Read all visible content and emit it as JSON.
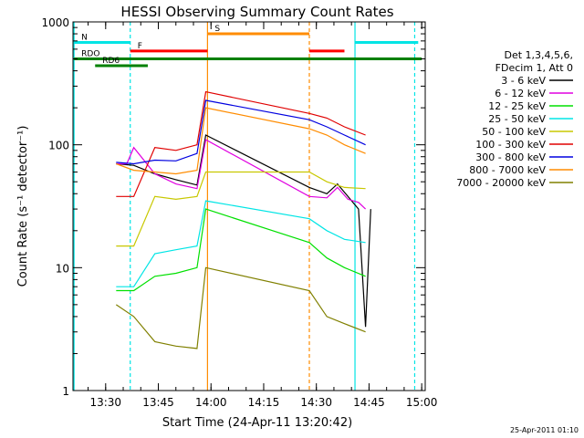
{
  "chart_data": {
    "type": "line",
    "title": "HESSI Observing Summary Count Rates",
    "xlabel": "Start Time (24-Apr-11 13:20:42)",
    "ylabel": "Count Rate (s⁻¹ detector⁻¹)",
    "yscale": "log",
    "ylim": [
      1,
      1000
    ],
    "xlim": [
      "13:20:42",
      "15:01:00"
    ],
    "x_ticks": [
      "13:30",
      "13:45",
      "14:00",
      "14:15",
      "14:30",
      "14:45",
      "15:00"
    ],
    "y_ticks": [
      "1",
      "10",
      "100",
      "1000"
    ],
    "legend_title": [
      "Det 1,3,4,5,6,",
      "FDecim 1, Att 0"
    ],
    "legend_position": "right",
    "footer": "25-Apr-2011 01:10",
    "markers": {
      "vlines_solid_cyan": [
        "13:21",
        "14:41"
      ],
      "vlines_dashed_cyan": [
        "13:37",
        "14:58"
      ],
      "vlines_solid_orange": [
        "13:59"
      ],
      "vlines_dashed_orange": [
        "14:28"
      ]
    },
    "flag_bars": [
      {
        "label": "N",
        "color": "#00e5e5",
        "y": 680,
        "segments": [
          [
            "13:21",
            "13:37"
          ],
          [
            "14:41",
            "14:59"
          ]
        ]
      },
      {
        "label": "S",
        "color": "#ff8c00",
        "y": 800,
        "segments": [
          [
            "13:59",
            "14:28"
          ]
        ]
      },
      {
        "label": "F",
        "color": "#ff0000",
        "y": 580,
        "segments": [
          [
            "13:37",
            "13:59"
          ],
          [
            "14:28",
            "14:38"
          ]
        ]
      },
      {
        "label": "RDO",
        "color": "#008000",
        "y": 500,
        "segments": [
          [
            "13:21",
            "15:00"
          ]
        ]
      },
      {
        "label": "RD6",
        "color": "#008000",
        "y": 440,
        "segments": [
          [
            "13:27",
            "13:42"
          ]
        ]
      }
    ],
    "series": [
      {
        "name": "3 - 6 keV",
        "color": "#000000",
        "x": [
          "13:33",
          "13:38",
          "13:44",
          "13:50",
          "13:56",
          "13:58.5",
          "14:28",
          "14:33",
          "14:36",
          "14:39",
          "14:42",
          "14:44",
          "14:45.5"
        ],
        "y": [
          70,
          68,
          58,
          52,
          47,
          120,
          45,
          40,
          48,
          38,
          30,
          3.3,
          30
        ]
      },
      {
        "name": "6 - 12 keV",
        "color": "#e000e0",
        "x": [
          "13:33",
          "13:36",
          "13:38",
          "13:44",
          "13:50",
          "13:56",
          "13:58.5",
          "14:28",
          "14:33",
          "14:36",
          "14:39",
          "14:42",
          "14:44"
        ],
        "y": [
          70,
          70,
          95,
          58,
          48,
          44,
          110,
          38,
          37,
          45,
          36,
          34,
          30
        ]
      },
      {
        "name": "12 - 25 keV",
        "color": "#00e000",
        "x": [
          "13:33",
          "13:38",
          "13:44",
          "13:50",
          "13:56",
          "13:58.5",
          "14:28",
          "14:33",
          "14:38",
          "14:44"
        ],
        "y": [
          6.5,
          6.5,
          8.5,
          9,
          10,
          30,
          16,
          12,
          10,
          8.5
        ]
      },
      {
        "name": "25 - 50 keV",
        "color": "#00e5e5",
        "x": [
          "13:33",
          "13:38",
          "13:44",
          "13:50",
          "13:56",
          "13:58.5",
          "14:28",
          "14:33",
          "14:38",
          "14:44"
        ],
        "y": [
          7,
          7,
          13,
          14,
          15,
          35,
          25,
          20,
          17,
          16
        ]
      },
      {
        "name": "50 - 100 keV",
        "color": "#c8c800",
        "x": [
          "13:33",
          "13:38",
          "13:44",
          "13:50",
          "13:56",
          "13:58.5",
          "14:28",
          "14:33",
          "14:38",
          "14:44"
        ],
        "y": [
          15,
          15,
          38,
          36,
          38,
          60,
          60,
          50,
          45,
          44
        ]
      },
      {
        "name": "100 - 300 keV",
        "color": "#e00000",
        "x": [
          "13:33",
          "13:38",
          "13:44",
          "13:50",
          "13:56",
          "13:58.5",
          "14:28",
          "14:33",
          "14:38",
          "14:44"
        ],
        "y": [
          38,
          38,
          95,
          90,
          100,
          270,
          180,
          165,
          140,
          120
        ]
      },
      {
        "name": "300 - 800 keV",
        "color": "#0000e0",
        "x": [
          "13:33",
          "13:38",
          "13:44",
          "13:50",
          "13:56",
          "13:58.5",
          "14:28",
          "14:33",
          "14:38",
          "14:44"
        ],
        "y": [
          72,
          70,
          75,
          74,
          85,
          230,
          160,
          140,
          120,
          100
        ]
      },
      {
        "name": "800 - 7000 keV",
        "color": "#ff8c00",
        "x": [
          "13:33",
          "13:38",
          "13:44",
          "13:50",
          "13:56",
          "13:58.5",
          "14:28",
          "14:33",
          "14:38",
          "14:44"
        ],
        "y": [
          70,
          62,
          60,
          58,
          62,
          200,
          135,
          120,
          100,
          85
        ]
      },
      {
        "name": "7000 - 20000 keV",
        "color": "#808000",
        "x": [
          "13:33",
          "13:38",
          "13:44",
          "13:50",
          "13:56",
          "13:58.5",
          "14:28",
          "14:33",
          "14:38",
          "14:44"
        ],
        "y": [
          5,
          4,
          2.5,
          2.3,
          2.2,
          10,
          6.5,
          4,
          3.5,
          3
        ]
      }
    ]
  }
}
